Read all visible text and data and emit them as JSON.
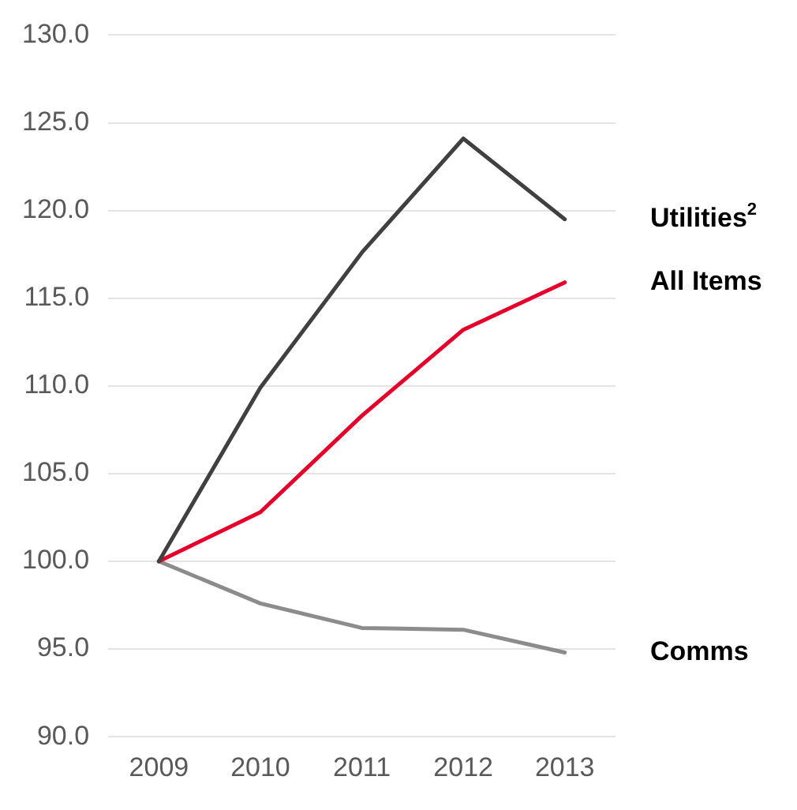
{
  "chart_data": {
    "type": "line",
    "categories": [
      "2009",
      "2010",
      "2011",
      "2012",
      "2013"
    ],
    "series": [
      {
        "name": "Utilities$^{2}$",
        "color": "#404040",
        "values": [
          100,
          109.9,
          117.6,
          124.1,
          119.5
        ]
      },
      {
        "name": "All Items",
        "color": "#e4002b",
        "values": [
          100,
          102.8,
          108.3,
          113.2,
          115.9
        ]
      },
      {
        "name": "Comms",
        "color": "#8c8c8c",
        "values": [
          100,
          97.6,
          96.2,
          96.1,
          94.8
        ]
      }
    ],
    "ylim": [
      90,
      130
    ],
    "yticks": [
      {
        "value": 90,
        "label": "90.0"
      },
      {
        "value": 95,
        "label": "95.0"
      },
      {
        "value": 100,
        "label": "100.0"
      },
      {
        "value": 105,
        "label": "105.0"
      },
      {
        "value": 110,
        "label": "110.0"
      },
      {
        "value": 115,
        "label": "115.0"
      },
      {
        "value": 120,
        "label": "120.0"
      },
      {
        "value": 125,
        "label": "125.0"
      },
      {
        "value": 130,
        "label": "130.0"
      }
    ],
    "grid": "y",
    "legend": false,
    "marker": "none",
    "line_style": "solid"
  }
}
